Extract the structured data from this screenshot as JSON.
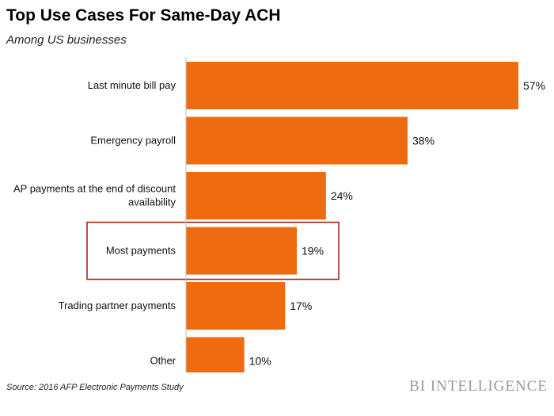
{
  "chart_data": {
    "type": "bar",
    "orientation": "horizontal",
    "title": "Top Use Cases For Same-Day ACH",
    "subtitle": "Among US businesses",
    "categories": [
      [
        "Last minute bill pay"
      ],
      [
        "Emergency payroll"
      ],
      [
        "AP payments at the end of discount",
        "availability"
      ],
      [
        "Most payments"
      ],
      [
        "Trading partner payments"
      ],
      [
        "Other"
      ]
    ],
    "values": [
      57,
      38,
      24,
      19,
      17,
      10
    ],
    "value_labels": [
      "57%",
      "38%",
      "24%",
      "19%",
      "17%",
      "10%"
    ],
    "xlim": [
      0,
      57
    ],
    "highlighted_category": "Most payments",
    "grid": false,
    "legend": "none",
    "colors": {
      "bar": "#ee6c0f",
      "highlight_box": "#a52a1a",
      "axis": "#bfbfbf"
    }
  },
  "footer": {
    "source": "Source: 2016 AFP Electronic Payments Study",
    "brand": "BI INTELLIGENCE"
  }
}
